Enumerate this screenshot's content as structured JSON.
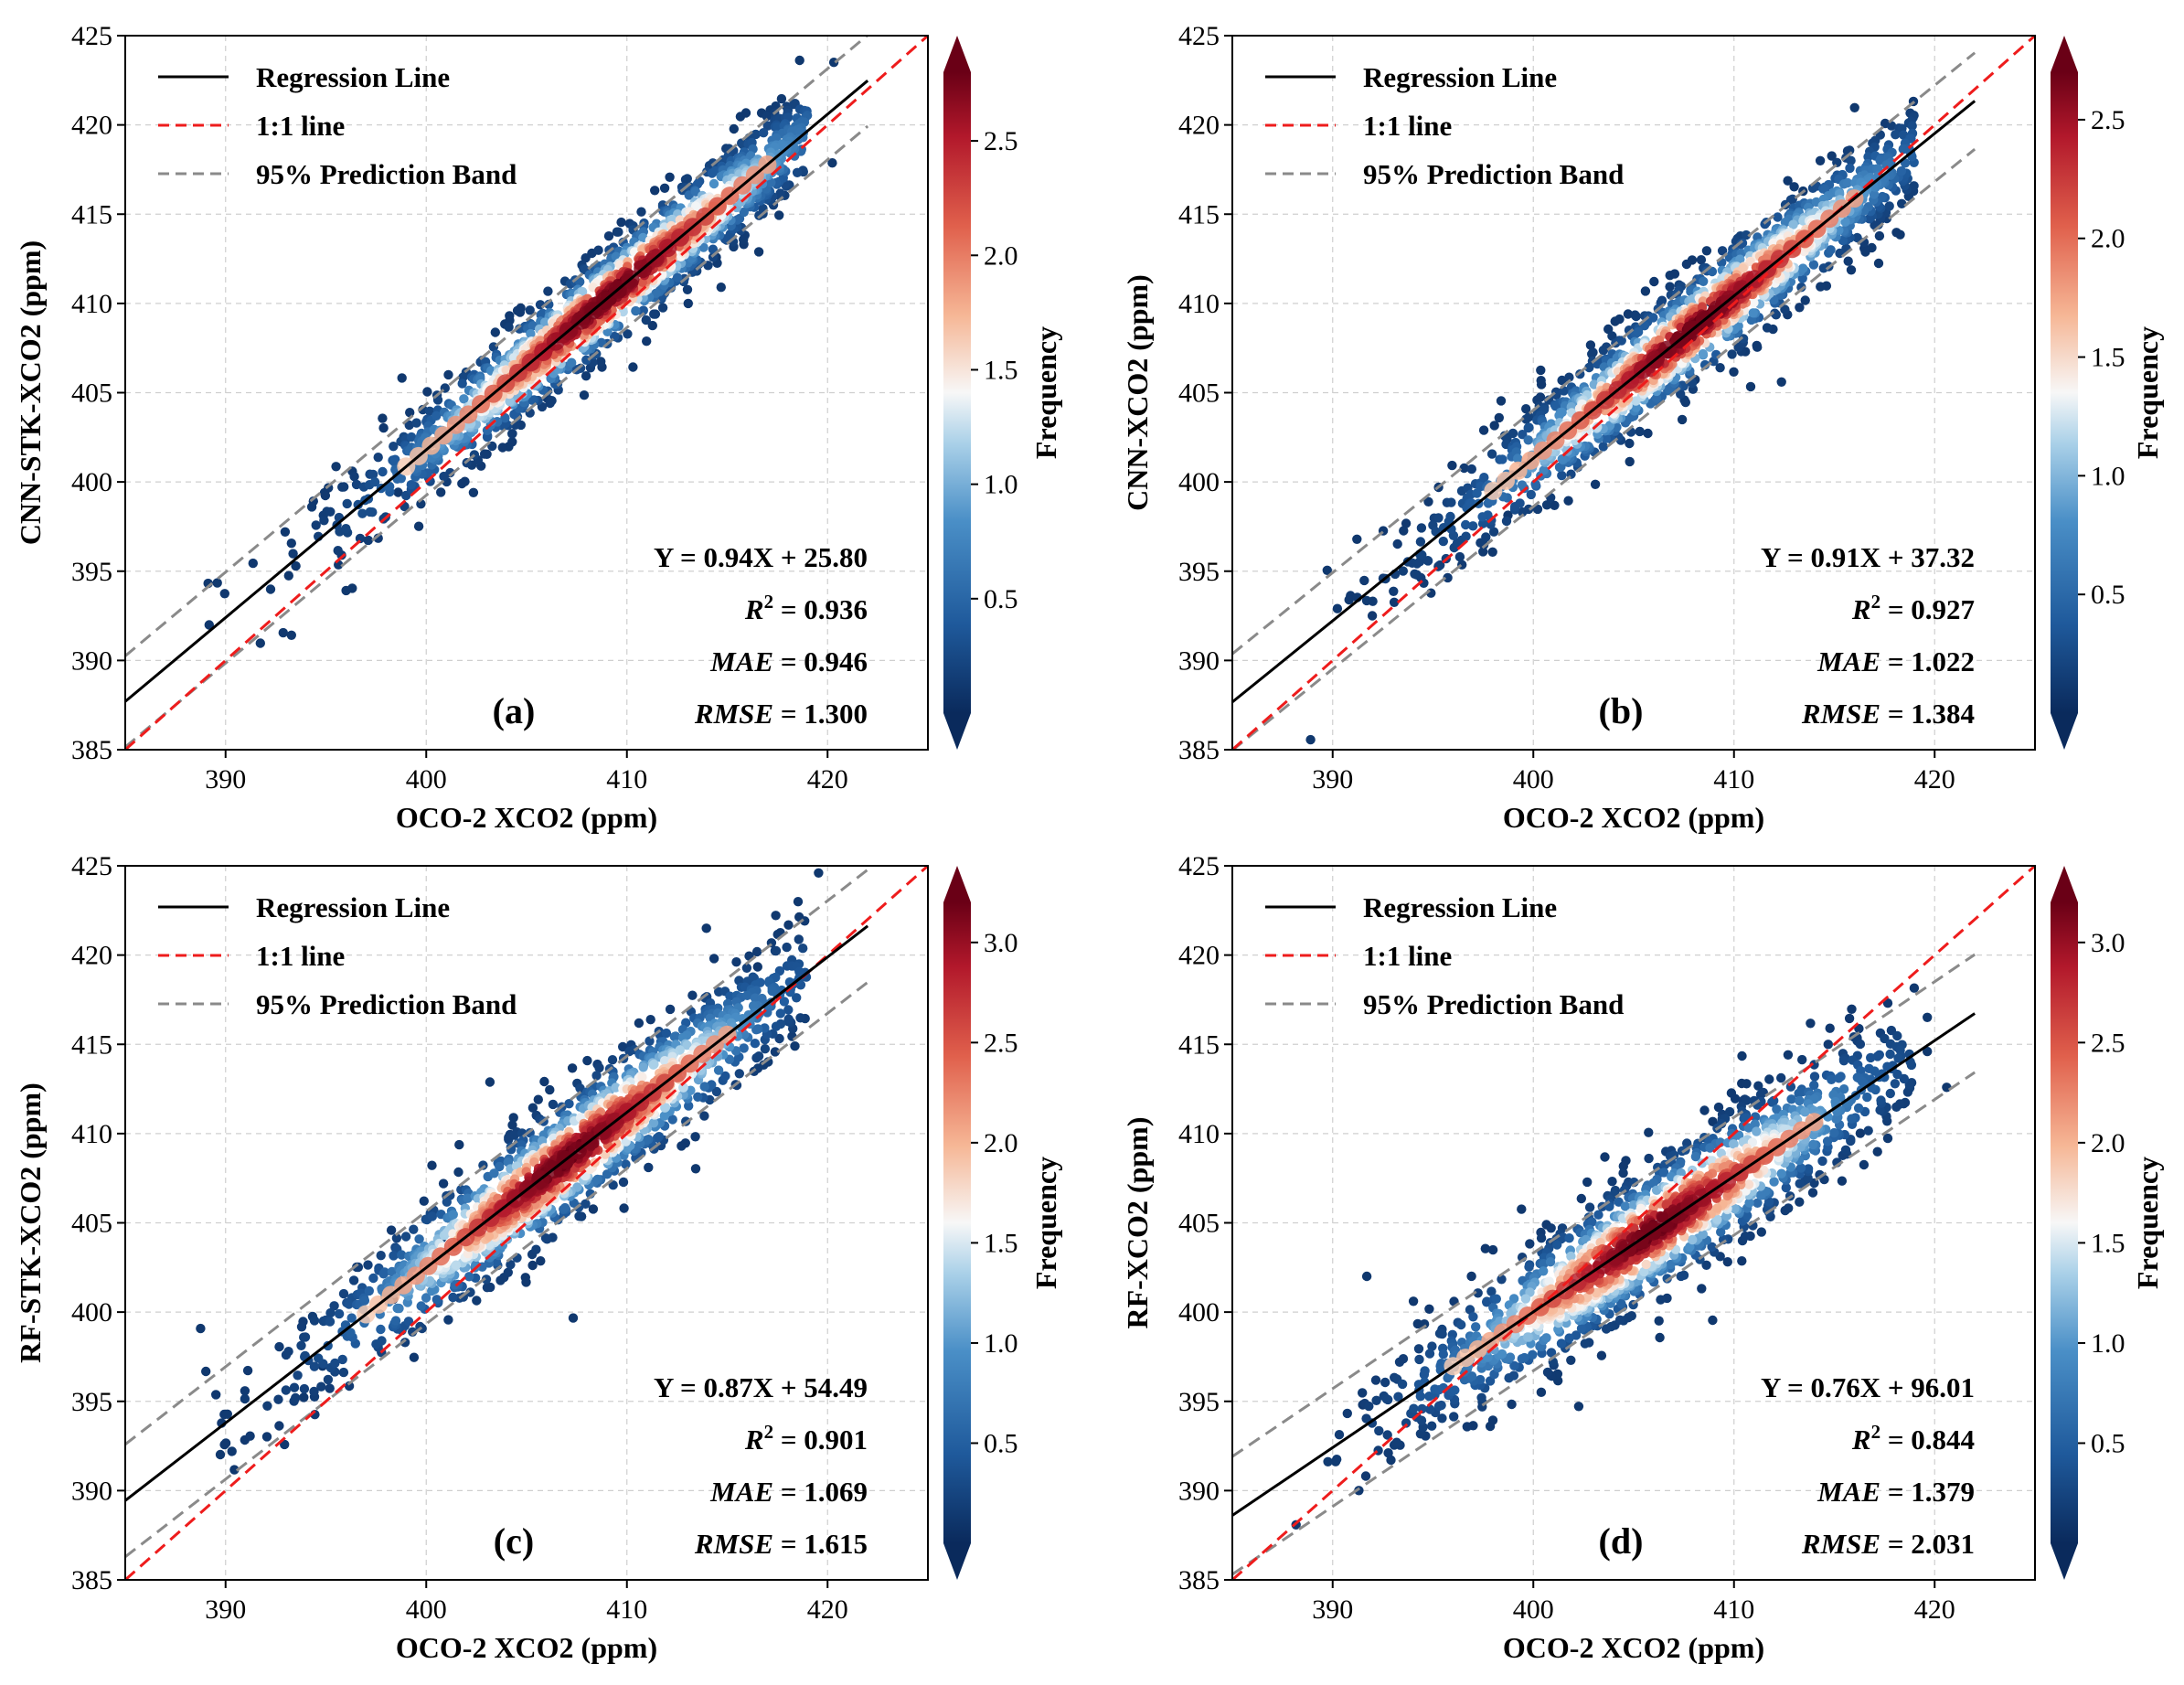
{
  "chart_data": [
    {
      "type": "scatter",
      "panel_label": "(a)",
      "xlabel": "OCO-2 XCO2 (ppm)",
      "ylabel": "CNN-STK-XCO2 (ppm)",
      "xlim": [
        385,
        425
      ],
      "ylim": [
        385,
        425
      ],
      "xticks": [
        390,
        400,
        410,
        420
      ],
      "yticks": [
        385,
        390,
        395,
        400,
        405,
        410,
        415,
        420,
        425
      ],
      "grid": true,
      "legend_position": "top-left",
      "legend": [
        "Regression Line",
        "1:1 line",
        "95% Prediction Band"
      ],
      "regression": {
        "slope": 0.94,
        "intercept": 25.8
      },
      "prediction_band_half_width": 2.55,
      "data_x_range": [
        386.5,
        422
      ],
      "annotations": {
        "equation": "Y = 0.94X + 25.80",
        "r2_label": "R",
        "r2_value": "= 0.936",
        "mae_label": "MAE",
        "mae_value": "= 0.946",
        "rmse_label": "RMSE",
        "rmse_value": "= 1.300"
      },
      "colorbar": {
        "label": "Frequency",
        "ticks": [
          0.5,
          1.0,
          1.5,
          2.0,
          2.5
        ],
        "tick_labels": [
          "0.5",
          "1.0",
          "1.5",
          "2.0",
          "2.5"
        ],
        "range": [
          0,
          2.8
        ],
        "extend": "both"
      },
      "density_spread": 2.2,
      "density_center": 409
    },
    {
      "type": "scatter",
      "panel_label": "(b)",
      "xlabel": "OCO-2 XCO2 (ppm)",
      "ylabel": "CNN-XCO2 (ppm)",
      "xlim": [
        385,
        425
      ],
      "ylim": [
        385,
        425
      ],
      "xticks": [
        390,
        400,
        410,
        420
      ],
      "yticks": [
        385,
        390,
        395,
        400,
        405,
        410,
        415,
        420,
        425
      ],
      "grid": true,
      "legend_position": "top-left",
      "legend": [
        "Regression Line",
        "1:1 line",
        "95% Prediction Band"
      ],
      "regression": {
        "slope": 0.91,
        "intercept": 37.32
      },
      "prediction_band_half_width": 2.7,
      "data_x_range": [
        386.5,
        422
      ],
      "annotations": {
        "equation": "Y = 0.91X + 37.32",
        "r2_label": "R",
        "r2_value": "= 0.927",
        "mae_label": "MAE",
        "mae_value": "= 1.022",
        "rmse_label": "RMSE",
        "rmse_value": "= 1.384"
      },
      "colorbar": {
        "label": "Frequency",
        "ticks": [
          0.5,
          1.0,
          1.5,
          2.0,
          2.5
        ],
        "tick_labels": [
          "0.5",
          "1.0",
          "1.5",
          "2.0",
          "2.5"
        ],
        "range": [
          0,
          2.7
        ],
        "extend": "both"
      },
      "density_spread": 2.3,
      "density_center": 408
    },
    {
      "type": "scatter",
      "panel_label": "(c)",
      "xlabel": "OCO-2 XCO2 (ppm)",
      "ylabel": "RF-STK-XCO2 (ppm)",
      "xlim": [
        385,
        425
      ],
      "ylim": [
        385,
        425
      ],
      "xticks": [
        390,
        400,
        410,
        420
      ],
      "yticks": [
        385,
        390,
        395,
        400,
        405,
        410,
        415,
        420,
        425
      ],
      "grid": true,
      "legend_position": "top-left",
      "legend": [
        "Regression Line",
        "1:1 line",
        "95% Prediction Band"
      ],
      "regression": {
        "slope": 0.87,
        "intercept": 54.49
      },
      "prediction_band_half_width": 3.15,
      "data_x_range": [
        386.5,
        422
      ],
      "annotations": {
        "equation": "Y = 0.87X + 54.49",
        "r2_label": "R",
        "r2_value": "= 0.901",
        "mae_label": "MAE",
        "mae_value": "= 1.069",
        "rmse_label": "RMSE",
        "rmse_value": "= 1.615"
      },
      "colorbar": {
        "label": "Frequency",
        "ticks": [
          0.5,
          1.0,
          1.5,
          2.0,
          2.5,
          3.0
        ],
        "tick_labels": [
          "0.5",
          "1.0",
          "1.5",
          "2.0",
          "2.5",
          "3.0"
        ],
        "range": [
          0,
          3.2
        ],
        "extend": "both"
      },
      "density_spread": 2.1,
      "density_center": 407
    },
    {
      "type": "scatter",
      "panel_label": "(d)",
      "xlabel": "OCO-2 XCO2 (ppm)",
      "ylabel": "RF-XCO2 (ppm)",
      "xlim": [
        385,
        425
      ],
      "ylim": [
        385,
        425
      ],
      "xticks": [
        390,
        400,
        410,
        420
      ],
      "yticks": [
        385,
        390,
        395,
        400,
        405,
        410,
        415,
        420,
        425
      ],
      "grid": true,
      "legend_position": "top-left",
      "legend": [
        "Regression Line",
        "1:1 line",
        "95% Prediction Band"
      ],
      "regression": {
        "slope": 0.76,
        "intercept": 96.01
      },
      "prediction_band_half_width": 3.3,
      "data_x_range": [
        387.5,
        422
      ],
      "annotations": {
        "equation": "Y = 0.76X + 96.01",
        "r2_label": "R",
        "r2_value": "= 0.844",
        "mae_label": "MAE",
        "mae_value": "= 1.379",
        "rmse_label": "RMSE",
        "rmse_value": "= 2.031"
      },
      "colorbar": {
        "label": "Frequency",
        "ticks": [
          0.5,
          1.0,
          1.5,
          2.0,
          2.5,
          3.0
        ],
        "tick_labels": [
          "0.5",
          "1.0",
          "1.5",
          "2.0",
          "2.5",
          "3.0"
        ],
        "range": [
          0,
          3.2
        ],
        "extend": "both"
      },
      "density_spread": 2.4,
      "density_center": 406
    }
  ],
  "colors": {
    "regression_line": "#000000",
    "one_to_one_line": "#ee1c1c",
    "prediction_band": "#8a8a8a",
    "grid": "#cfcfcf",
    "colormap": [
      "#0a2a5c",
      "#1f5a9c",
      "#4a8fc7",
      "#a9d0e8",
      "#f7f7f7",
      "#f6b796",
      "#e0604c",
      "#b2182b",
      "#6a0016"
    ]
  }
}
